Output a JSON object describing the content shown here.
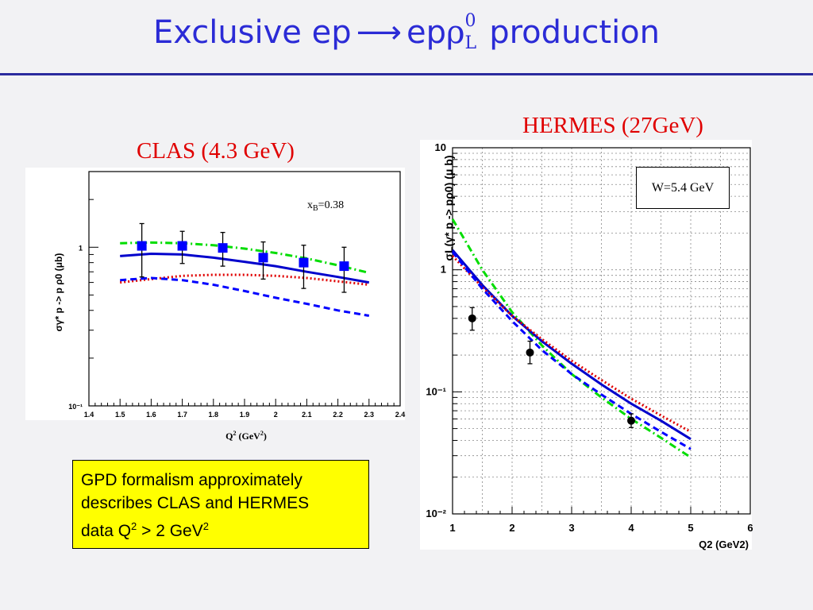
{
  "slide": {
    "title_prefix": "Exclusive ep",
    "title_arrow": "⟶",
    "title_ep": "ep",
    "title_rho": "ρ",
    "title_sup": "0",
    "title_sub": "L",
    "title_suffix": " production"
  },
  "labels": {
    "clas": "CLAS (4.3 GeV)",
    "hermes": "HERMES (27GeV)"
  },
  "note": {
    "line1": "GPD formalism approximately",
    "line2": "describes CLAS and HERMES",
    "line3_a": "data Q",
    "line3_sup1": "2",
    "line3_b": " > 2 GeV",
    "line3_sup2": "2"
  },
  "colors": {
    "title": "#2b2bd6",
    "rule": "#2b2b9e",
    "panel_label": "#e00000",
    "note_bg": "#ffff00",
    "curve_solid": "#0000cc",
    "curve_dashed": "#0000ff",
    "curve_dotted": "#e00000",
    "curve_dashdot": "#00dd00",
    "clas_marker": "#0000ff",
    "hermes_marker": "#000000"
  },
  "chart_data": [
    {
      "id": "clas",
      "type": "scatter",
      "yscale": "log",
      "xlim": [
        1.4,
        2.4
      ],
      "ylim": [
        0.1,
        3
      ],
      "xticks": [
        "1.4",
        "1.5",
        "1.6",
        "1.7",
        "1.8",
        "1.9",
        "2",
        "2.1",
        "2.2",
        "2.3",
        "2.4"
      ],
      "yticks": [
        {
          "v": 1,
          "label": "1"
        },
        {
          "v": 0.1,
          "label": "10⁻¹"
        }
      ],
      "xlabel_main": "Q",
      "xlabel_sup": "2",
      "xlabel_unit": " (GeV",
      "xlabel_sup2": "2",
      "xlabel_end": ")",
      "ylabel": "σγ* p -> p ρ0 (μb)",
      "annotation_main": "x",
      "annotation_sub": "B",
      "annotation_val": "=0.38",
      "grid": false,
      "data": {
        "x": [
          1.57,
          1.7,
          1.83,
          1.96,
          2.09,
          2.22
        ],
        "y": [
          1.02,
          1.02,
          0.99,
          0.86,
          0.8,
          0.76
        ],
        "yerr_low": [
          0.37,
          0.23,
          0.23,
          0.23,
          0.25,
          0.24
        ],
        "yerr_high": [
          0.39,
          0.24,
          0.25,
          0.22,
          0.23,
          0.24
        ]
      },
      "curves": [
        {
          "style": "dashdot",
          "x": [
            1.5,
            1.6,
            1.7,
            1.8,
            1.9,
            2.0,
            2.1,
            2.2,
            2.3
          ],
          "y": [
            1.06,
            1.07,
            1.06,
            1.03,
            0.98,
            0.92,
            0.85,
            0.77,
            0.69
          ]
        },
        {
          "style": "solid",
          "x": [
            1.5,
            1.6,
            1.7,
            1.8,
            1.9,
            2.0,
            2.1,
            2.2,
            2.3
          ],
          "y": [
            0.88,
            0.91,
            0.9,
            0.86,
            0.81,
            0.76,
            0.7,
            0.65,
            0.6
          ]
        },
        {
          "style": "dotted",
          "x": [
            1.5,
            1.6,
            1.7,
            1.8,
            1.9,
            2.0,
            2.1,
            2.2,
            2.3
          ],
          "y": [
            0.6,
            0.63,
            0.66,
            0.67,
            0.67,
            0.66,
            0.64,
            0.61,
            0.58
          ]
        },
        {
          "style": "dashed",
          "x": [
            1.5,
            1.6,
            1.7,
            1.8,
            1.9,
            2.0,
            2.1,
            2.2,
            2.3
          ],
          "y": [
            0.62,
            0.64,
            0.62,
            0.58,
            0.53,
            0.48,
            0.44,
            0.4,
            0.37
          ]
        }
      ]
    },
    {
      "id": "hermes",
      "type": "scatter",
      "yscale": "log",
      "xlim": [
        1,
        6
      ],
      "ylim": [
        0.01,
        10
      ],
      "xticks": [
        "1",
        "2",
        "3",
        "4",
        "5",
        "6"
      ],
      "yticks": [
        {
          "v": 10,
          "label": "10"
        },
        {
          "v": 1,
          "label": "1"
        },
        {
          "v": 0.1,
          "label": "10⁻¹"
        },
        {
          "v": 0.01,
          "label": "10⁻²"
        }
      ],
      "xlabel_main": "Q",
      "xlabel_sup": "2",
      "xlabel_unit": " (GeV",
      "xlabel_sup2": "2",
      "xlabel_end": ")",
      "ylabel": "σL(γ* p -> pρ0) (μ b)",
      "annotation": "W=5.4 GeV",
      "grid": true,
      "data": {
        "x": [
          1.33,
          2.3,
          4.0
        ],
        "y": [
          0.4,
          0.21,
          0.058
        ],
        "yerr_low": [
          0.08,
          0.04,
          0.007
        ],
        "yerr_high": [
          0.09,
          0.05,
          0.008
        ]
      },
      "curves": [
        {
          "style": "dashdot",
          "x": [
            1.0,
            1.5,
            2.0,
            2.5,
            3.0,
            3.5,
            4.0,
            4.5,
            5.0
          ],
          "y": [
            2.6,
            1.0,
            0.45,
            0.24,
            0.14,
            0.09,
            0.06,
            0.042,
            0.029
          ]
        },
        {
          "style": "solid",
          "x": [
            1.0,
            1.5,
            2.0,
            2.5,
            3.0,
            3.5,
            4.0,
            4.5,
            5.0
          ],
          "y": [
            1.45,
            0.75,
            0.42,
            0.26,
            0.17,
            0.115,
            0.08,
            0.058,
            0.041
          ]
        },
        {
          "style": "dotted",
          "x": [
            1.0,
            1.5,
            2.0,
            2.5,
            3.0,
            3.5,
            4.0,
            4.5,
            5.0
          ],
          "y": [
            1.3,
            0.72,
            0.42,
            0.27,
            0.18,
            0.125,
            0.088,
            0.064,
            0.047
          ]
        },
        {
          "style": "dashed",
          "x": [
            1.0,
            1.5,
            2.0,
            2.5,
            3.0,
            3.5,
            4.0,
            4.5,
            5.0
          ],
          "y": [
            1.4,
            0.7,
            0.38,
            0.22,
            0.14,
            0.095,
            0.066,
            0.047,
            0.034
          ]
        }
      ]
    }
  ]
}
